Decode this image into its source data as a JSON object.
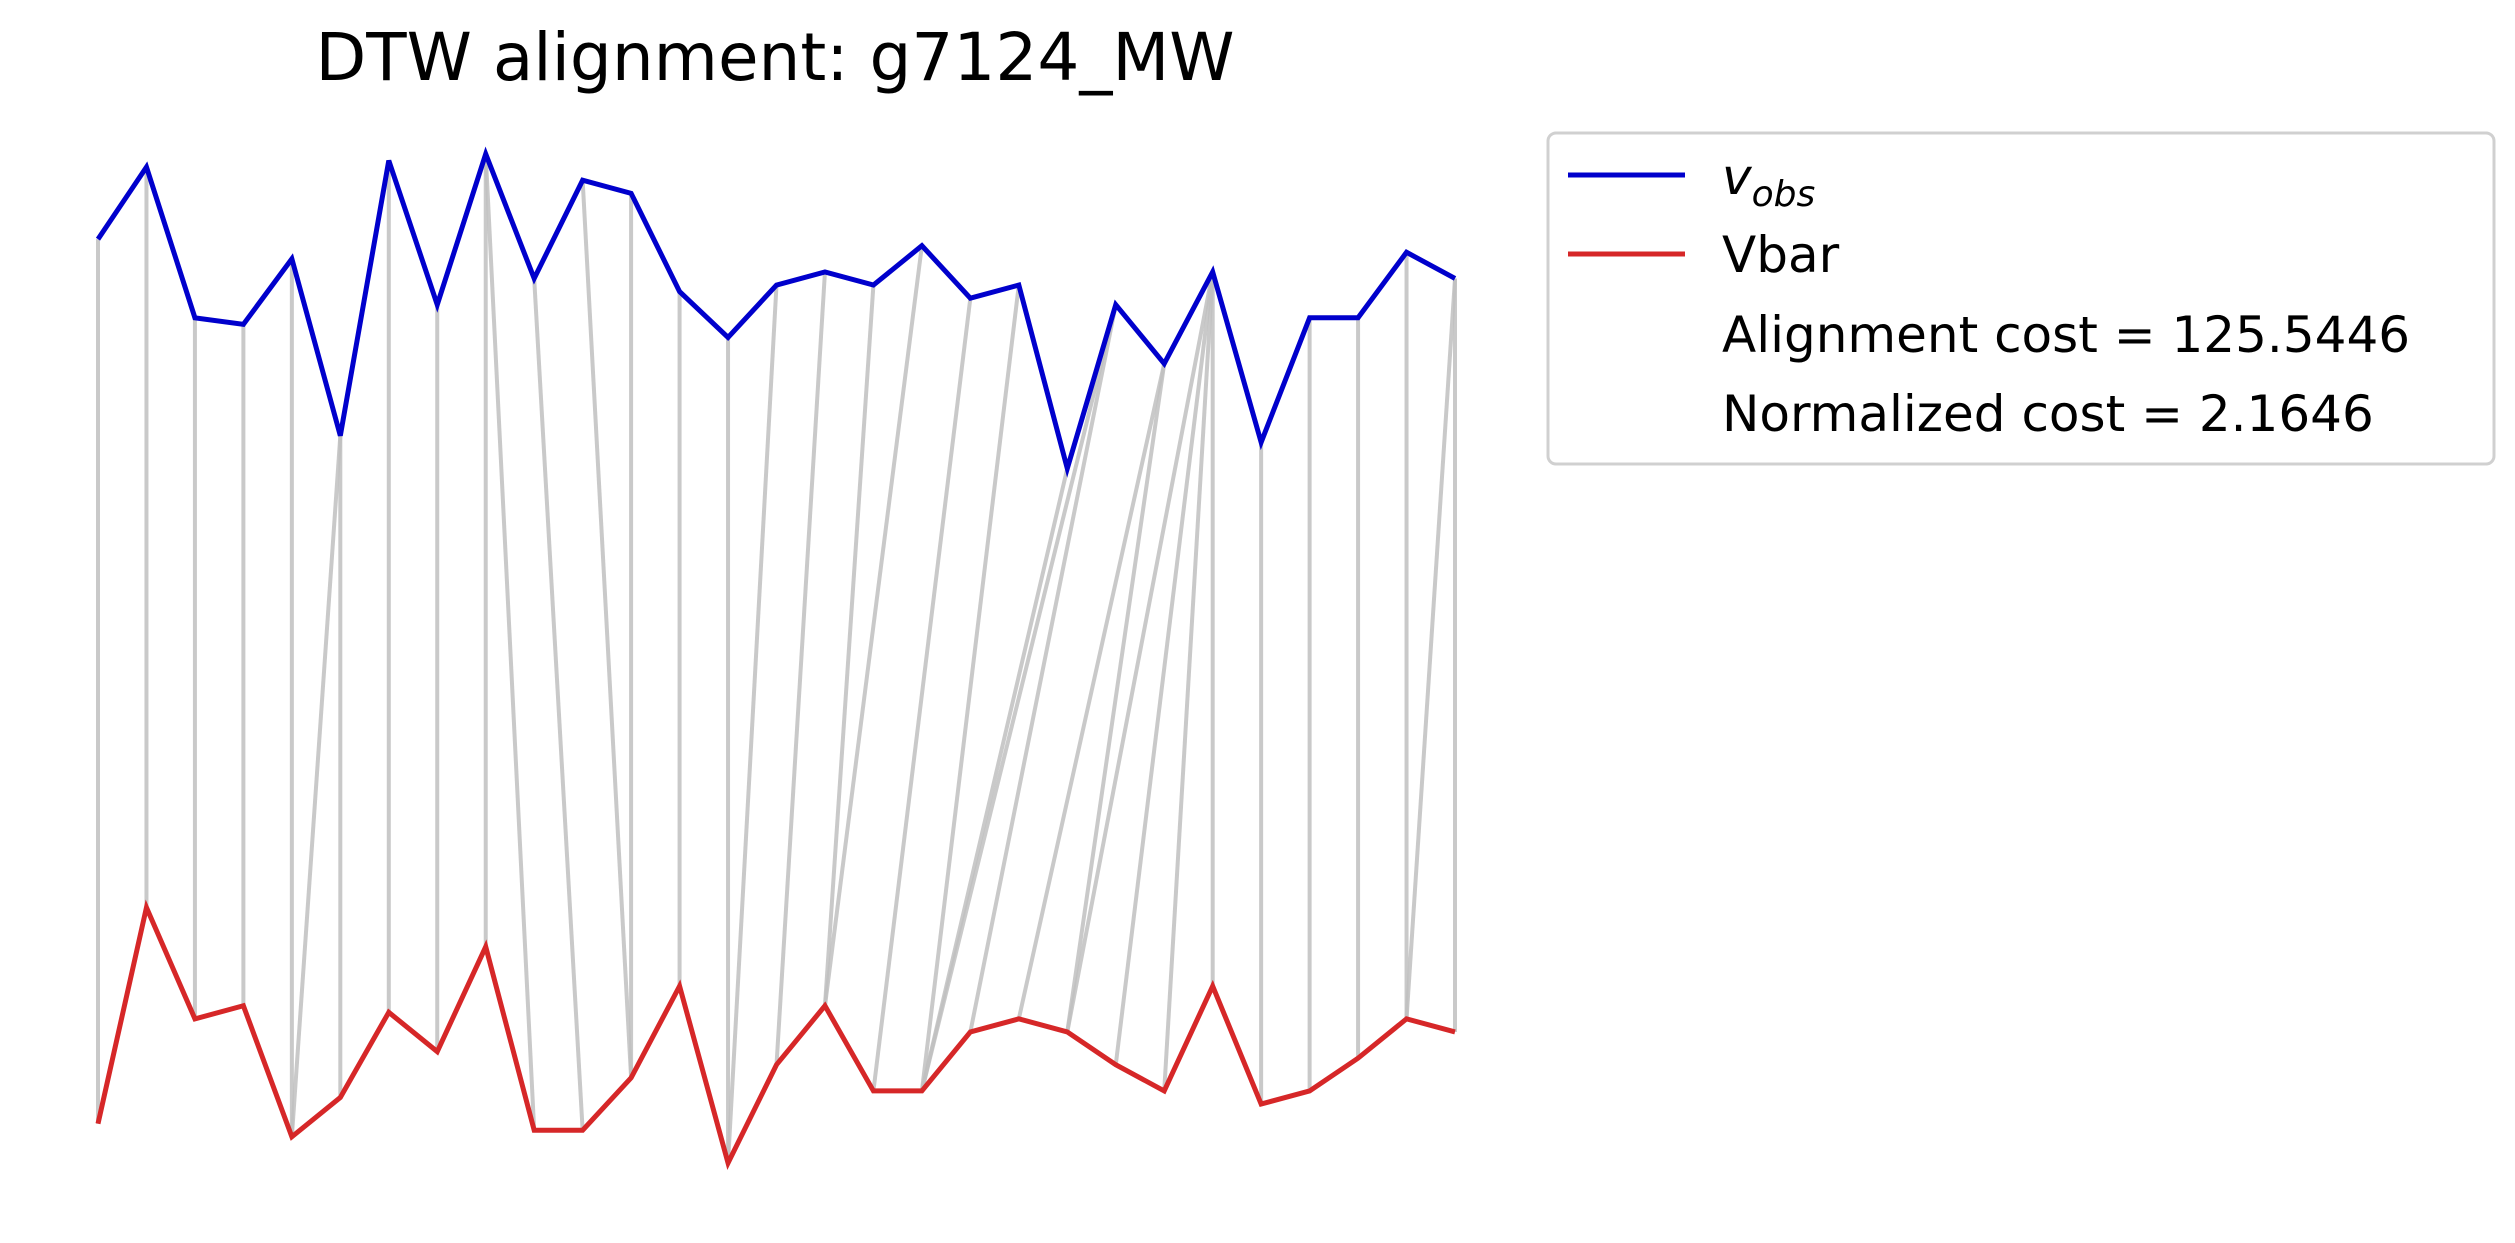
{
  "chart_data": {
    "type": "line",
    "title": "DTW alignment: g7124_MW",
    "grid": false,
    "axes_visible": false,
    "legend_position": "upper-right-outside",
    "series": [
      {
        "name": "v_obs",
        "label_main": "v",
        "label_sub": "obs",
        "color": "#0000cc",
        "values": [
          0.84,
          0.95,
          0.72,
          0.71,
          0.81,
          0.54,
          0.96,
          0.74,
          0.97,
          0.78,
          0.93,
          0.91,
          0.76,
          0.69,
          0.77,
          0.79,
          0.77,
          0.83,
          0.75,
          0.77,
          0.49,
          0.74,
          0.65,
          0.79,
          0.53,
          0.72,
          0.72,
          0.82,
          0.78
        ]
      },
      {
        "name": "Vbar",
        "label_main": "Vbar",
        "color": "#d62728",
        "values": [
          -0.51,
          -0.18,
          -0.35,
          -0.33,
          -0.53,
          -0.47,
          -0.34,
          -0.4,
          -0.24,
          -0.52,
          -0.52,
          -0.44,
          -0.3,
          -0.57,
          -0.42,
          -0.33,
          -0.46,
          -0.46,
          -0.37,
          -0.35,
          -0.37,
          -0.42,
          -0.46,
          -0.3,
          -0.48,
          -0.46,
          -0.41,
          -0.35,
          -0.37
        ]
      }
    ],
    "alignment_color": "#c0c0c0",
    "alignment_pairs": [
      [
        0,
        0
      ],
      [
        1,
        1
      ],
      [
        2,
        2
      ],
      [
        3,
        3
      ],
      [
        4,
        4
      ],
      [
        5,
        4
      ],
      [
        5,
        5
      ],
      [
        6,
        6
      ],
      [
        7,
        7
      ],
      [
        8,
        8
      ],
      [
        8,
        9
      ],
      [
        9,
        10
      ],
      [
        10,
        11
      ],
      [
        11,
        11
      ],
      [
        12,
        12
      ],
      [
        13,
        13
      ],
      [
        14,
        13
      ],
      [
        15,
        14
      ],
      [
        16,
        15
      ],
      [
        17,
        15
      ],
      [
        18,
        16
      ],
      [
        19,
        17
      ],
      [
        20,
        17
      ],
      [
        21,
        17
      ],
      [
        21,
        18
      ],
      [
        22,
        19
      ],
      [
        22,
        20
      ],
      [
        23,
        20
      ],
      [
        23,
        21
      ],
      [
        23,
        22
      ],
      [
        23,
        23
      ],
      [
        24,
        24
      ],
      [
        25,
        25
      ],
      [
        26,
        26
      ],
      [
        27,
        27
      ],
      [
        28,
        27
      ],
      [
        28,
        28
      ]
    ],
    "annotations": [
      "Alignment cost = 125.5446",
      "Normalized cost = 2.1646"
    ]
  }
}
